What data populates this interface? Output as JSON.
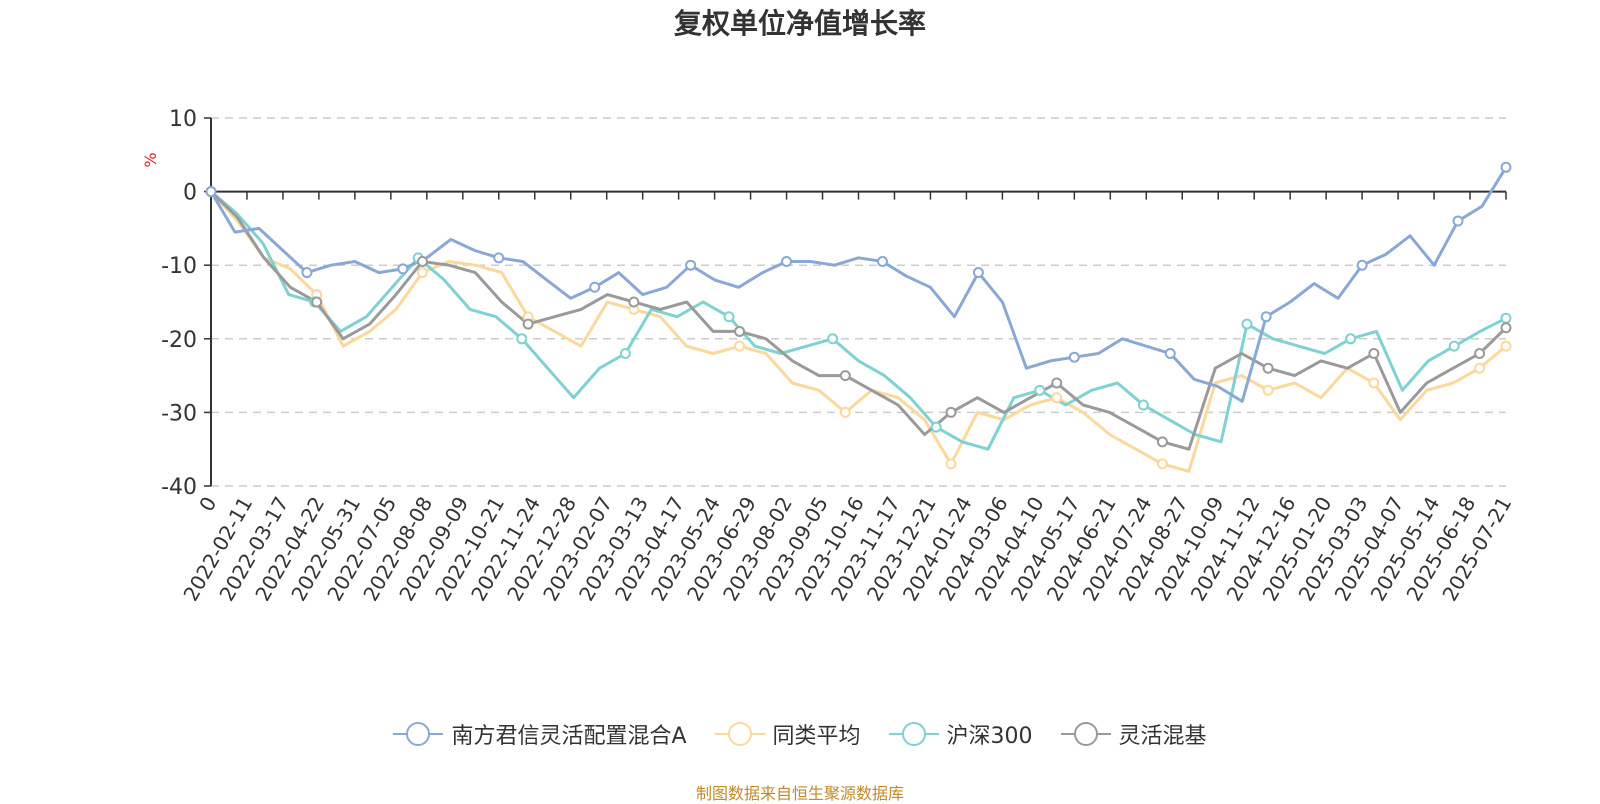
{
  "chart_data": {
    "type": "line",
    "title": "复权单位净值增长率",
    "ylabel": "%",
    "ylim": [
      -40,
      10
    ],
    "yticks": [
      10,
      0,
      -10,
      -20,
      -30,
      -40
    ],
    "x_ticks": [
      "0",
      "2022-02-11",
      "2022-03-17",
      "2022-04-22",
      "2022-05-31",
      "2022-07-05",
      "2022-08-08",
      "2022-09-09",
      "2022-10-21",
      "2022-11-24",
      "2022-12-28",
      "2023-02-07",
      "2023-03-13",
      "2023-04-17",
      "2023-05-24",
      "2023-06-29",
      "2023-08-02",
      "2023-09-05",
      "2023-10-16",
      "2023-11-17",
      "2023-12-21",
      "2024-01-24",
      "2024-03-06",
      "2024-04-10",
      "2024-05-17",
      "2024-06-21",
      "2024-07-24",
      "2024-08-27",
      "2024-10-09",
      "2024-11-12",
      "2024-12-16",
      "2025-01-20",
      "2025-03-03",
      "2025-04-07",
      "2025-05-14",
      "2025-06-18",
      "2025-07-21"
    ],
    "series": [
      {
        "name": "南方君信灵活配置混合A",
        "color": "#8aa8d6",
        "values": [
          0,
          -5.5,
          -5,
          -8,
          -11,
          -10,
          -9.5,
          -11,
          -10.5,
          -9,
          -6.5,
          -8,
          -9,
          -9.5,
          -12,
          -14.5,
          -13,
          -11,
          -14,
          -13,
          -10,
          -12,
          -13,
          -11,
          -9.5,
          -9.5,
          -10,
          -9,
          -9.5,
          -11.5,
          -13,
          -17,
          -11,
          -15,
          -24,
          -23,
          -22.5,
          -22,
          -20,
          -21,
          -22,
          -25.5,
          -26.5,
          -28.5,
          -17,
          -15,
          -12.5,
          -14.5,
          -10,
          -8.5,
          -6,
          -10,
          -4,
          -2,
          3.3
        ]
      },
      {
        "name": "同类平均",
        "color": "#fbd89b",
        "values": [
          0,
          -4,
          -9,
          -10.5,
          -14,
          -21,
          -19,
          -16,
          -11,
          -9.5,
          -10,
          -11,
          -17,
          -19,
          -21,
          -15,
          -16,
          -17,
          -21,
          -22,
          -21,
          -22,
          -26,
          -27,
          -30,
          -27,
          -28,
          -31,
          -37,
          -30,
          -31,
          -29,
          -28,
          -30,
          -33,
          -35,
          -37,
          -38,
          -26,
          -25,
          -27,
          -26,
          -28,
          -24,
          -26,
          -31,
          -27,
          -26,
          -24,
          -21
        ]
      },
      {
        "name": "沪深300",
        "color": "#7fd1d4",
        "values": [
          0,
          -3,
          -7,
          -14,
          -15,
          -19,
          -17,
          -13,
          -9,
          -12,
          -16,
          -17,
          -20,
          -24,
          -28,
          -24,
          -22,
          -16,
          -17,
          -15,
          -17,
          -21,
          -22,
          -21,
          -20,
          -23,
          -25,
          -28,
          -32,
          -34,
          -35,
          -28,
          -27,
          -29,
          -27,
          -26,
          -29,
          -31,
          -33,
          -34,
          -18,
          -20,
          -21,
          -22,
          -20,
          -19,
          -27,
          -23,
          -21,
          -19,
          -17.2
        ]
      },
      {
        "name": "灵活混基",
        "color": "#9a9a9a",
        "values": [
          0,
          -3.5,
          -9,
          -13,
          -15,
          -20,
          -18,
          -14,
          -9.5,
          -10,
          -11,
          -15,
          -18,
          -17,
          -16,
          -14,
          -15,
          -16,
          -15,
          -19,
          -19,
          -20,
          -23,
          -25,
          -25,
          -27,
          -29,
          -33,
          -30,
          -28,
          -30,
          -28,
          -26,
          -29,
          -30,
          -32,
          -34,
          -35,
          -24,
          -22,
          -24,
          -25,
          -23,
          -24,
          -22,
          -30,
          -26,
          -24,
          -22,
          -18.5
        ]
      }
    ]
  },
  "source": "制图数据来自恒生聚源数据库"
}
